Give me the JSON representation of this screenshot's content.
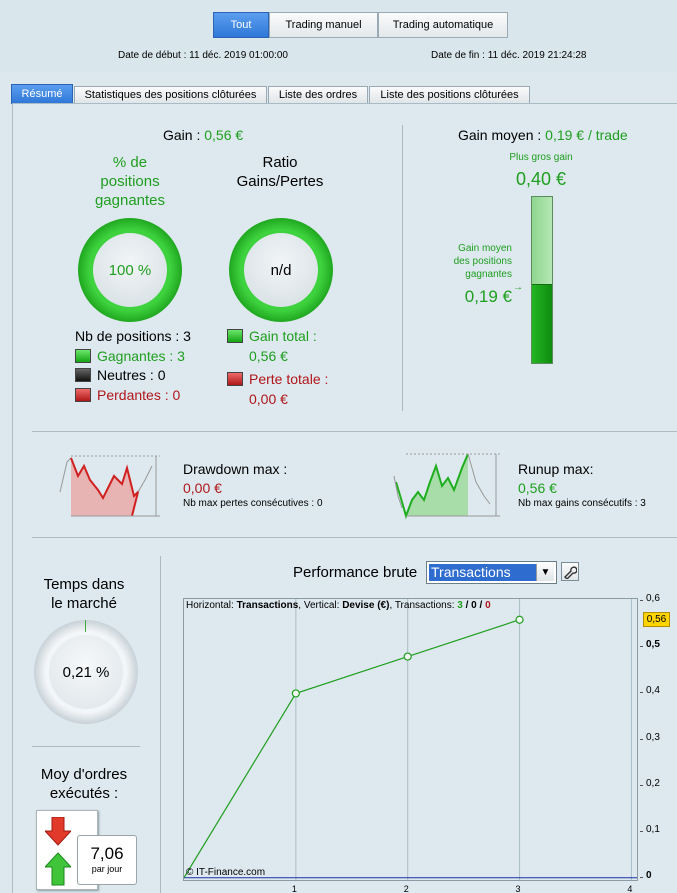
{
  "filters": {
    "all": "Tout",
    "manual": "Trading manuel",
    "auto": "Trading automatique"
  },
  "dates": {
    "start_label": "Date de début :",
    "start": "11 déc. 2019 01:00:00",
    "end_label": "Date de fin :",
    "end": "11 déc. 2019 21:24:28"
  },
  "tabs": [
    "Résumé",
    "Statistiques des positions clôturées",
    "Liste des ordres",
    "Liste des positions clôturées"
  ],
  "gain": {
    "label": "Gain :",
    "value": "0,56 €"
  },
  "winning": {
    "title_1": "% de",
    "title_2": "positions",
    "title_3": "gagnantes",
    "value": "100 %"
  },
  "ratio": {
    "title_1": "Ratio",
    "title_2": "Gains/Pertes",
    "value": "n/d"
  },
  "positions": {
    "total": "Nb de positions : 3",
    "winners": "Gagnantes : 3",
    "neutral": "Neutres : 0",
    "losers": "Perdantes : 0"
  },
  "totals": {
    "gain_label": "Gain total :",
    "gain_value": "0,56 €",
    "loss_label": "Perte totale :",
    "loss_value": "0,00 €"
  },
  "avg_gain": {
    "label": "Gain moyen :",
    "value": "0,19 € / trade",
    "biggest_label": "Plus gros gain",
    "biggest_value": "0,40 €",
    "avg_win_1": "Gain moyen",
    "avg_win_2": "des positions",
    "avg_win_3": "gagnantes",
    "avg_win_value": "0,19 €",
    "fill_ratio": 0.475
  },
  "drawdown": {
    "label": "Drawdown max :",
    "value": "0,00 €",
    "sub": "Nb max pertes consécutives : 0"
  },
  "runup": {
    "label": "Runup max:",
    "value": "0,56 €",
    "sub": "Nb max gains consécutifs : 3"
  },
  "time_in_market": {
    "title_1": "Temps dans",
    "title_2": "le marché",
    "value": "0,21 %"
  },
  "orders": {
    "title_1": "Moy d'ordres",
    "title_2": "exécutés :",
    "value": "7,06",
    "unit": "par jour"
  },
  "perf": {
    "label": "Performance brute",
    "selected": "Transactions"
  },
  "chart_data": {
    "type": "line",
    "legend_prefix": "Horizontal: ",
    "legend_h": "Transactions",
    "legend_mid": ", Vertical: ",
    "legend_v": "Devise (€)",
    "legend_mid2": ", Transactions: ",
    "legend_w": "3",
    "legend_sep1": " / ",
    "legend_n": "0",
    "legend_sep2": " / ",
    "legend_l": "0",
    "x": [
      0,
      1,
      2,
      3
    ],
    "y": [
      0,
      0.4,
      0.48,
      0.56
    ],
    "xlim": [
      0,
      4.05
    ],
    "ylim": [
      -0.005,
      0.605
    ],
    "xticks": [
      "1",
      "2",
      "3",
      "4"
    ],
    "yticks": [
      "0,6",
      "0,5",
      "0,4",
      "0,3",
      "0,2",
      "0,1",
      "0"
    ],
    "ytick_values": [
      0.6,
      0.5,
      0.4,
      0.3,
      0.2,
      0.1,
      0
    ],
    "current_value": "0,56",
    "watermark": "© IT-Finance.com",
    "line_color": "#1f9e1f",
    "zero_color": "#1c2fa6"
  }
}
